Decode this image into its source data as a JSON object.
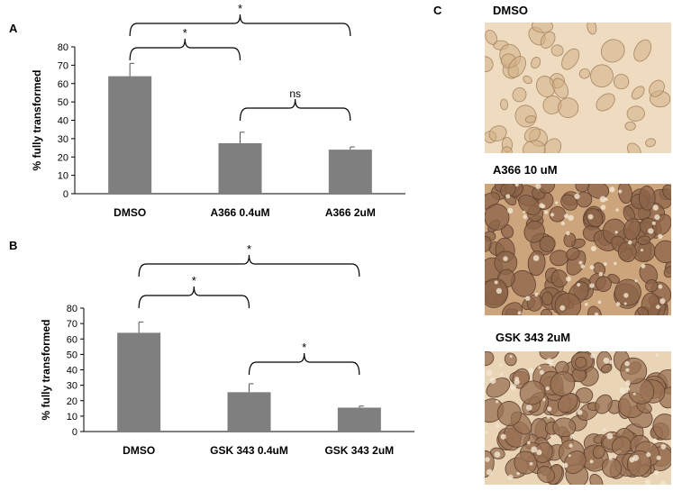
{
  "panels": {
    "a": "A",
    "b": "B",
    "c": "C"
  },
  "photos": [
    {
      "label": "DMSO",
      "bg": "#eedbc0",
      "cell": "#d2b186",
      "style": "sparse"
    },
    {
      "label": "A366 10 uM",
      "bg": "#cca57c",
      "cell": "#8c6448",
      "style": "dense"
    },
    {
      "label": "GSK 343 2uM",
      "bg": "#e9d4b6",
      "cell": "#9a7254",
      "style": "dense"
    }
  ],
  "chart_data": [
    {
      "type": "bar",
      "panel": "A",
      "title": "",
      "xlabel": "",
      "ylabel": "% fully transformed",
      "categories": [
        "DMSO",
        "A366 0.4uM",
        "A366 2uM"
      ],
      "values": [
        64,
        27.5,
        24
      ],
      "errors": [
        7,
        6,
        1.5
      ],
      "ylim": [
        0,
        80
      ],
      "yticks": [
        "0",
        "10",
        "20",
        "30",
        "40",
        "50",
        "60",
        "70",
        "80"
      ],
      "bar_color": "#7f7f7f",
      "grid": false,
      "annotations": [
        {
          "from": "DMSO",
          "to": "A366 2uM",
          "text": "*",
          "level": "upper"
        },
        {
          "from": "DMSO",
          "to": "A366 0.4uM",
          "text": "*",
          "level": "middle"
        },
        {
          "from": "A366 0.4uM",
          "to": "A366 2uM",
          "text": "ns",
          "level": "lower"
        }
      ]
    },
    {
      "type": "bar",
      "panel": "B",
      "title": "",
      "xlabel": "",
      "ylabel": "% fully transformed",
      "categories": [
        "DMSO",
        "GSK 343 0.4uM",
        "GSK 343 2uM"
      ],
      "values": [
        64,
        25.5,
        15.5
      ],
      "errors": [
        7,
        5.5,
        1
      ],
      "ylim": [
        0,
        80
      ],
      "yticks": [
        "0",
        "10",
        "20",
        "30",
        "40",
        "50",
        "60",
        "70",
        "80"
      ],
      "bar_color": "#7f7f7f",
      "grid": false,
      "annotations": [
        {
          "from": "DMSO",
          "to": "GSK 343 2uM",
          "text": "*",
          "level": "upper"
        },
        {
          "from": "DMSO",
          "to": "GSK 343 0.4uM",
          "text": "*",
          "level": "middle"
        },
        {
          "from": "GSK 343 0.4uM",
          "to": "GSK 343 2uM",
          "text": "*",
          "level": "lower"
        }
      ]
    }
  ]
}
